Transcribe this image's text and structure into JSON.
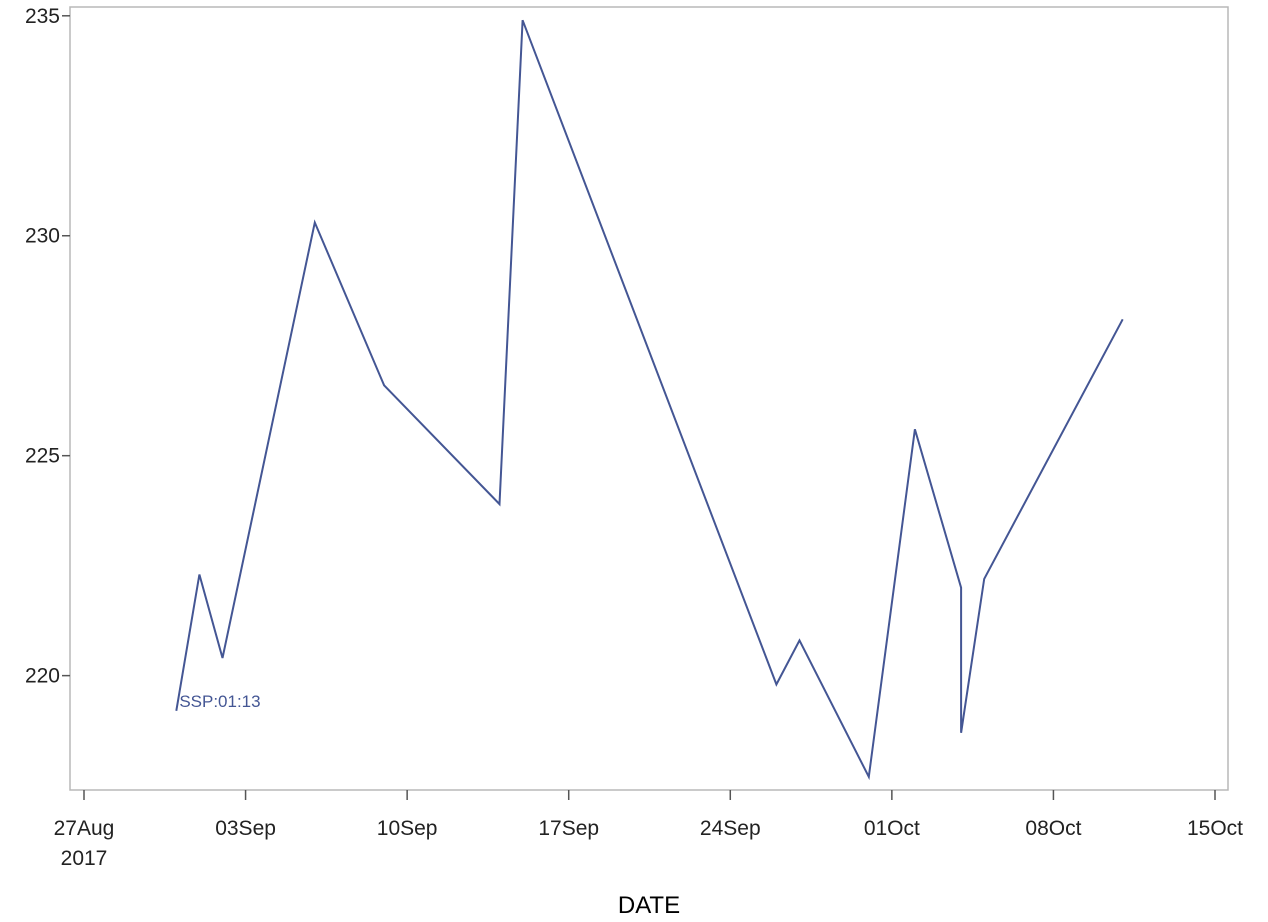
{
  "chart_data": {
    "type": "line",
    "title": "",
    "xlabel": "DATE",
    "ylabel": "",
    "x_type": "date",
    "xlim": [
      "2017-08-27",
      "2017-10-15"
    ],
    "ylim": [
      217.4,
      235.2
    ],
    "x_ticks": [
      {
        "date": "2017-08-27",
        "label": "27Aug",
        "sublabel": "2017"
      },
      {
        "date": "2017-09-03",
        "label": "03Sep",
        "sublabel": ""
      },
      {
        "date": "2017-09-10",
        "label": "10Sep",
        "sublabel": ""
      },
      {
        "date": "2017-09-17",
        "label": "17Sep",
        "sublabel": ""
      },
      {
        "date": "2017-09-24",
        "label": "24Sep",
        "sublabel": ""
      },
      {
        "date": "2017-10-01",
        "label": "01Oct",
        "sublabel": ""
      },
      {
        "date": "2017-10-08",
        "label": "08Oct",
        "sublabel": ""
      },
      {
        "date": "2017-10-15",
        "label": "15Oct",
        "sublabel": ""
      }
    ],
    "y_ticks": [
      220,
      225,
      230,
      235
    ],
    "grid": false,
    "series": [
      {
        "name": "",
        "color": "#445694",
        "label": "SSP:01:13",
        "points": [
          {
            "x": "2017-08-31",
            "y": 219.2
          },
          {
            "x": "2017-09-01",
            "y": 222.3
          },
          {
            "x": "2017-09-02",
            "y": 220.4
          },
          {
            "x": "2017-09-06",
            "y": 230.3
          },
          {
            "x": "2017-09-09",
            "y": 226.6
          },
          {
            "x": "2017-09-14",
            "y": 223.9
          },
          {
            "x": "2017-09-15",
            "y": 234.9
          },
          {
            "x": "2017-09-26",
            "y": 219.8
          },
          {
            "x": "2017-09-27",
            "y": 220.8
          },
          {
            "x": "2017-09-30",
            "y": 217.7
          },
          {
            "x": "2017-10-02",
            "y": 225.6
          },
          {
            "x": "2017-10-04",
            "y": 222.0
          },
          {
            "x": "2017-10-04",
            "y": 218.7
          },
          {
            "x": "2017-10-05",
            "y": 222.2
          },
          {
            "x": "2017-10-11",
            "y": 228.1
          }
        ]
      }
    ]
  }
}
